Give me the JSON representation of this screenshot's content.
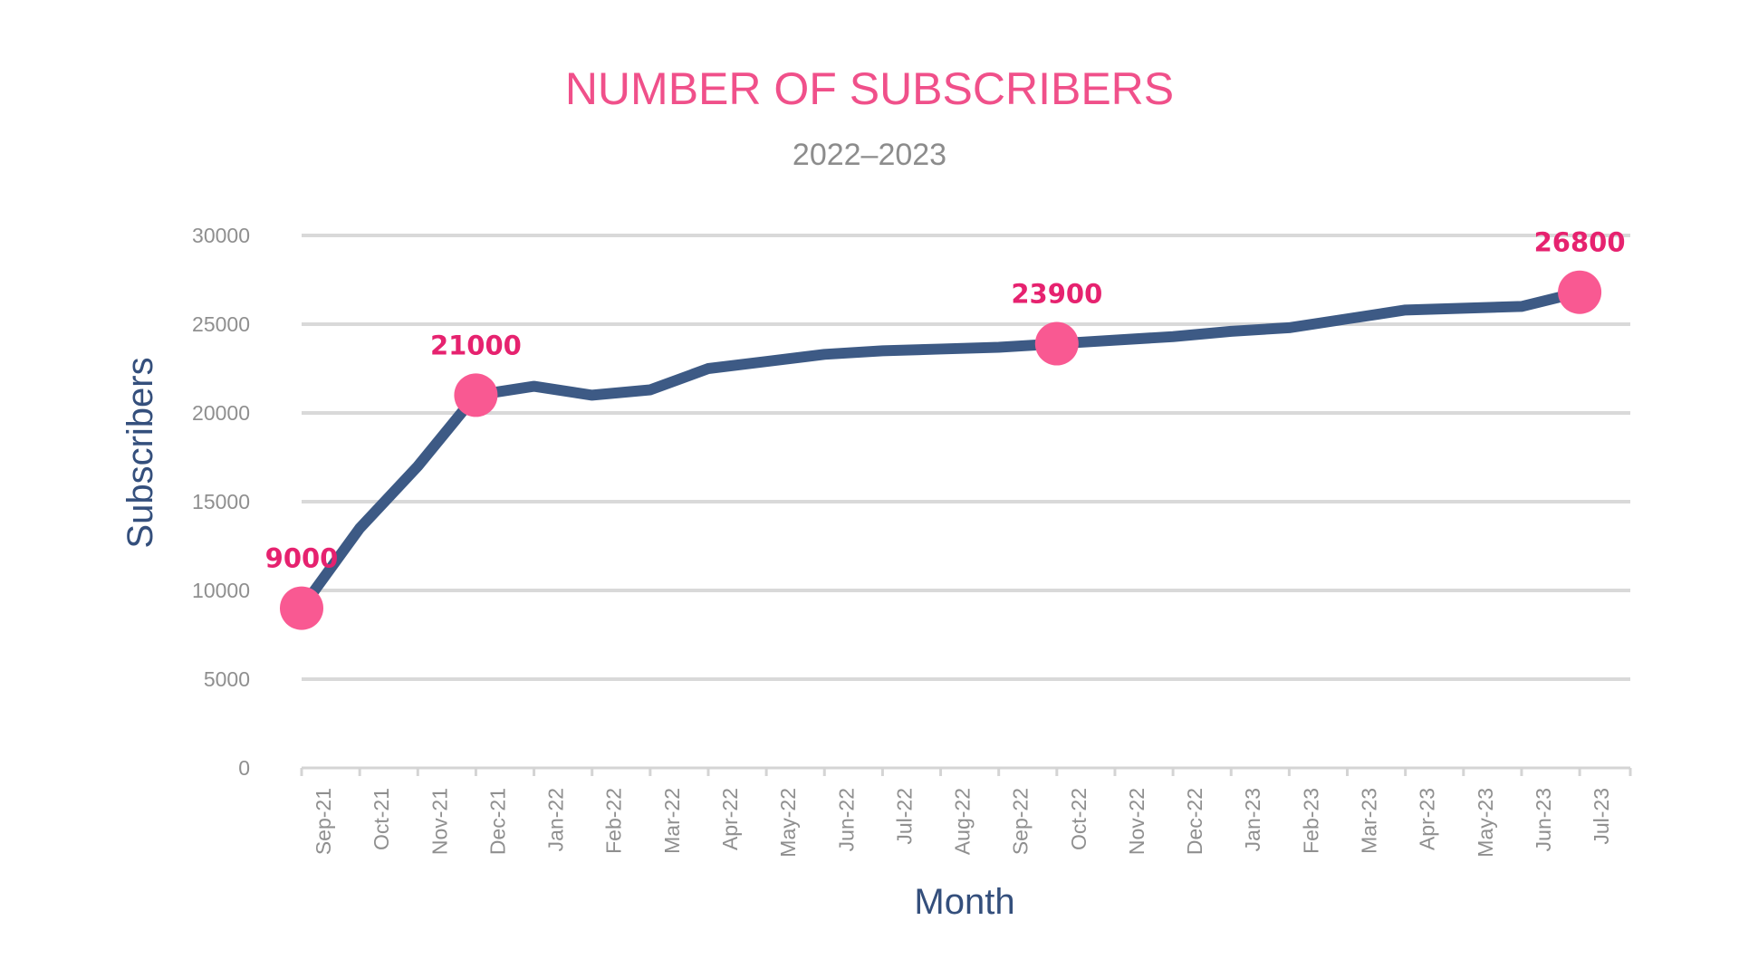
{
  "chart_data": {
    "type": "line",
    "title": "NUMBER OF SUBSCRIBERS",
    "subtitle": "2022–2023",
    "xlabel": "Month",
    "ylabel": "Subscribers",
    "ylim": [
      0,
      30000
    ],
    "yticks": [
      0,
      5000,
      10000,
      15000,
      20000,
      25000,
      30000
    ],
    "grid": true,
    "legend": "none",
    "categories": [
      "Sep-21",
      "Oct-21",
      "Nov-21",
      "Dec-21",
      "Jan-22",
      "Feb-22",
      "Mar-22",
      "Apr-22",
      "May-22",
      "Jun-22",
      "Jul-22",
      "Aug-22",
      "Sep-22",
      "Oct-22",
      "Nov-22",
      "Dec-22",
      "Jan-23",
      "Feb-23",
      "Mar-23",
      "Apr-23",
      "May-23",
      "Jun-23",
      "Jul-23"
    ],
    "series": [
      {
        "values": [
          9000,
          13500,
          17000,
          21000,
          21500,
          21000,
          21300,
          22500,
          22900,
          23300,
          23500,
          23600,
          23700,
          23900,
          24100,
          24300,
          24600,
          24800,
          25300,
          25800,
          25900,
          26000,
          26800
        ]
      }
    ],
    "highlighted_points": [
      {
        "category": "Sep-21",
        "value": 9000,
        "label": "9000"
      },
      {
        "category": "Dec-21",
        "value": 21000,
        "label": "21000"
      },
      {
        "category": "Oct-22",
        "value": 23900,
        "label": "23900"
      },
      {
        "category": "Jul-23",
        "value": 26800,
        "label": "26800"
      }
    ],
    "colors": {
      "line": "#3d5a85",
      "marker": "#f95992",
      "data_label": "#e6226f",
      "title": "#f0508a",
      "axis_title": "#344f7c",
      "tick": "#8f8f8f",
      "grid": "#d9d9d9"
    }
  }
}
